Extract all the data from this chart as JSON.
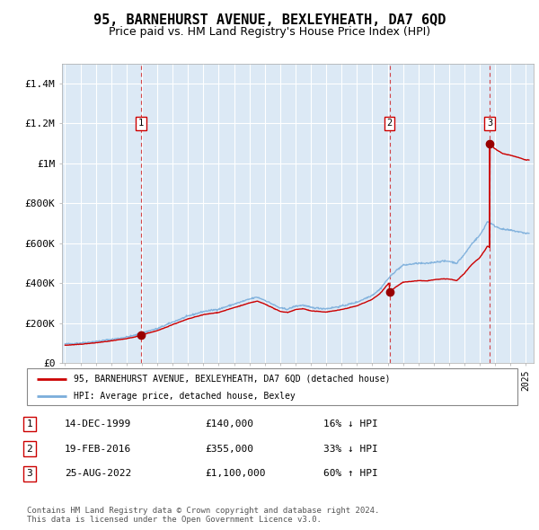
{
  "title": "95, BARNEHURST AVENUE, BEXLEYHEATH, DA7 6QD",
  "subtitle": "Price paid vs. HM Land Registry's House Price Index (HPI)",
  "ylim": [
    0,
    1500000
  ],
  "yticks": [
    0,
    200000,
    400000,
    600000,
    800000,
    1000000,
    1200000,
    1400000
  ],
  "ytick_labels": [
    "£0",
    "£200K",
    "£400K",
    "£600K",
    "£800K",
    "£1M",
    "£1.2M",
    "£1.4M"
  ],
  "xmin": 1994.8,
  "xmax": 2025.5,
  "background_color": "#dce9f5",
  "grid_color": "#ffffff",
  "sale_dates": [
    1999.958,
    2016.125,
    2022.646
  ],
  "sale_prices": [
    140000,
    355000,
    1100000
  ],
  "sale_labels": [
    "1",
    "2",
    "3"
  ],
  "legend_line1": "95, BARNEHURST AVENUE, BEXLEYHEATH, DA7 6QD (detached house)",
  "legend_line2": "HPI: Average price, detached house, Bexley",
  "table_rows": [
    [
      "1",
      "14-DEC-1999",
      "£140,000",
      "16% ↓ HPI"
    ],
    [
      "2",
      "19-FEB-2016",
      "£355,000",
      "33% ↓ HPI"
    ],
    [
      "3",
      "25-AUG-2022",
      "£1,100,000",
      "60% ↑ HPI"
    ]
  ],
  "footer": "Contains HM Land Registry data © Crown copyright and database right 2024.\nThis data is licensed under the Open Government Licence v3.0.",
  "red_color": "#cc0000",
  "blue_color": "#7aaddb",
  "title_fontsize": 11,
  "subtitle_fontsize": 9
}
